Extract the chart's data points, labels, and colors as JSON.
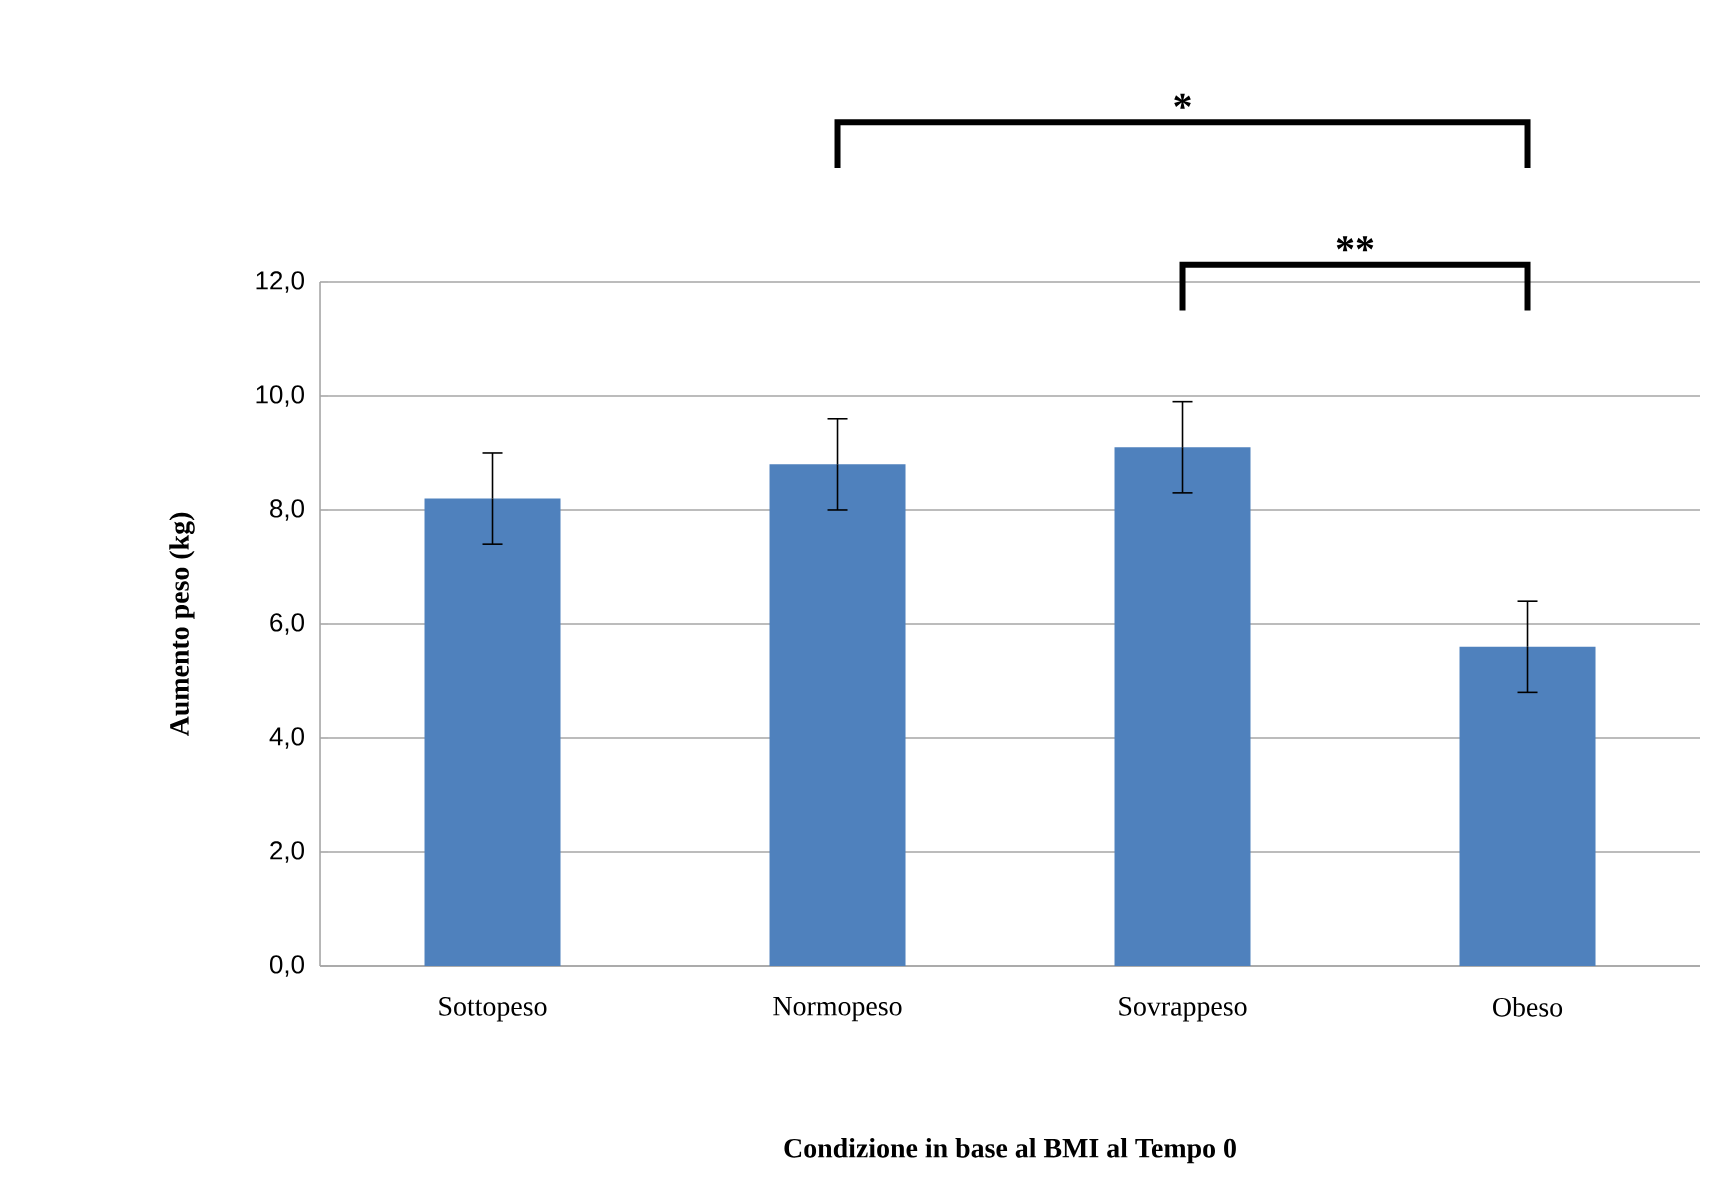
{
  "chart_data": {
    "type": "bar",
    "xlabel": "Condizione in base al BMI al Tempo 0",
    "ylabel": "Aumento peso (kg)",
    "categories": [
      "Sottopeso",
      "Normopeso",
      "Sovrappeso",
      "Obeso"
    ],
    "values": [
      8.2,
      8.8,
      9.1,
      5.6
    ],
    "errors": [
      0.8,
      0.8,
      0.8,
      0.8
    ],
    "color": "#4f81bd",
    "ylim": [
      0,
      12
    ],
    "yticks": [
      {
        "value": 0,
        "label": "0,0"
      },
      {
        "value": 2,
        "label": "2,0"
      },
      {
        "value": 4,
        "label": "4,0"
      },
      {
        "value": 6,
        "label": "6,0"
      },
      {
        "value": 8,
        "label": "8,0"
      },
      {
        "value": 10,
        "label": "10,0"
      },
      {
        "value": 12,
        "label": "12,0"
      }
    ],
    "grid": "y",
    "annotations": [
      "*",
      "**"
    ]
  }
}
